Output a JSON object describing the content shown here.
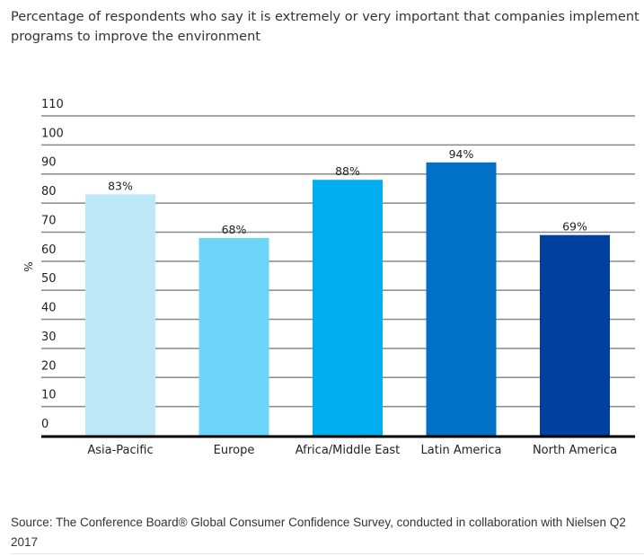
{
  "chart_data": {
    "type": "bar",
    "title": "Percentage of respondents who say it is extremely or very important that companies implement programs to improve the environment",
    "xlabel": "",
    "ylabel": "%",
    "ylim": [
      0,
      110
    ],
    "yticks": [
      0,
      10,
      20,
      30,
      40,
      50,
      60,
      70,
      80,
      90,
      100,
      110
    ],
    "grid": true,
    "categories": [
      "Asia-Pacific",
      "Europe",
      "Africa/Middle East",
      "Latin America",
      "North America"
    ],
    "values": [
      83,
      68,
      88,
      94,
      69
    ],
    "data_labels": [
      "83%",
      "68%",
      "88%",
      "94%",
      "69%"
    ],
    "colors": [
      "#bde8f7",
      "#6dd5f7",
      "#00aeef",
      "#0071c5",
      "#0041a0"
    ],
    "source": "Source: The Conference Board® Global Consumer Confidence Survey, conducted in collaboration with Nielsen Q2 2017"
  }
}
